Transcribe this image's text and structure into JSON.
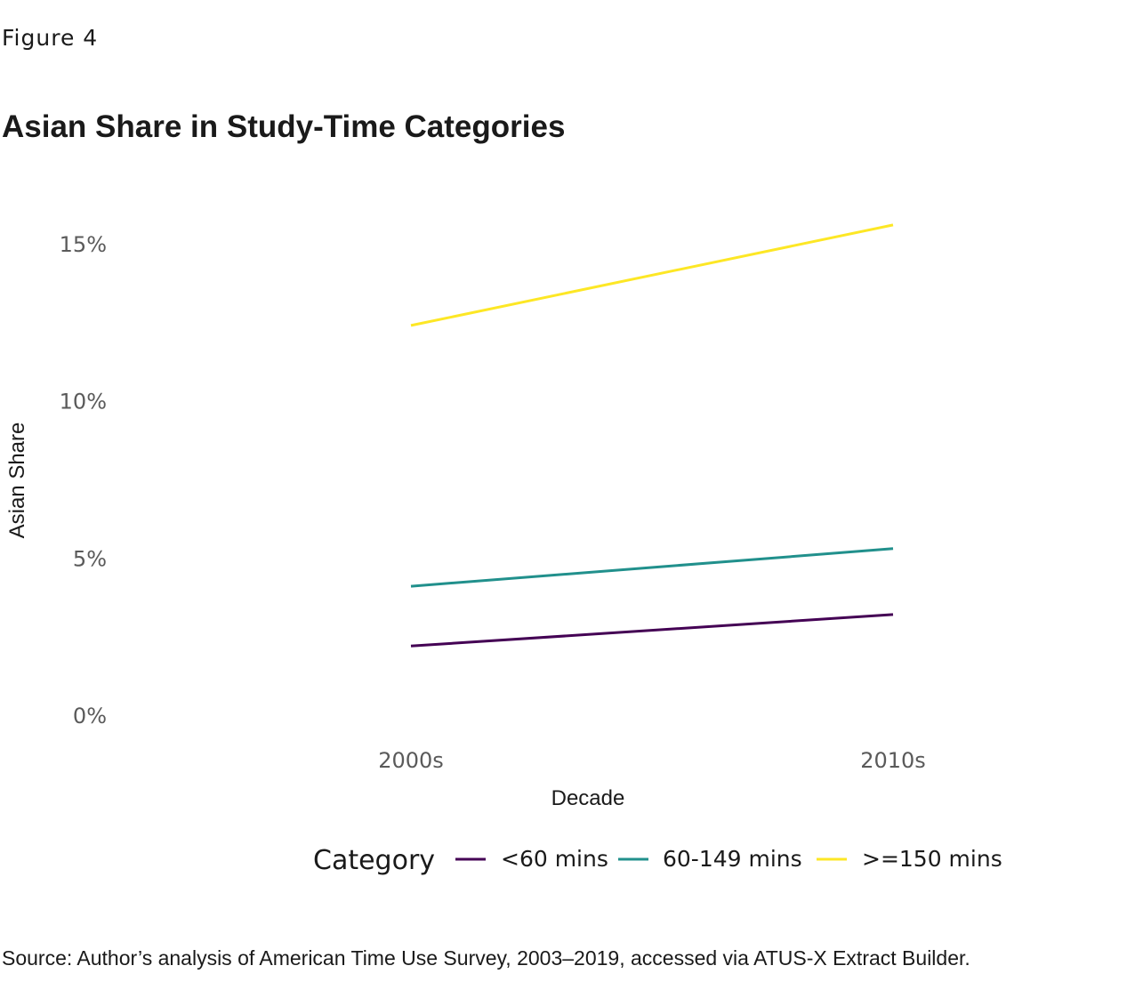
{
  "figure_label": "Figure 4",
  "source": "Source: Author’s analysis of American Time Use Survey, 2003–2019, accessed via ATUS-X Extract Builder.",
  "chart_data": {
    "type": "line",
    "title": "Asian Share in Study-Time Categories",
    "xlabel": "Decade",
    "ylabel": "Asian Share",
    "categories": [
      "2000s",
      "2010s"
    ],
    "y_ticks": [
      0,
      5,
      10,
      15
    ],
    "y_tick_labels": [
      "0%",
      "5%",
      "10%",
      "15%"
    ],
    "ylim": [
      0,
      15.6
    ],
    "grid": false,
    "legend": {
      "title": "Category",
      "placement": "bottom"
    },
    "series": [
      {
        "name": "<60 mins",
        "color": "#440154",
        "values": [
          2.2,
          3.2
        ]
      },
      {
        "name": "60-149 mins",
        "color": "#21908C",
        "values": [
          4.1,
          5.3
        ]
      },
      {
        "name": ">=150 mins",
        "color": "#FDE725",
        "values": [
          12.4,
          15.6
        ]
      }
    ]
  }
}
